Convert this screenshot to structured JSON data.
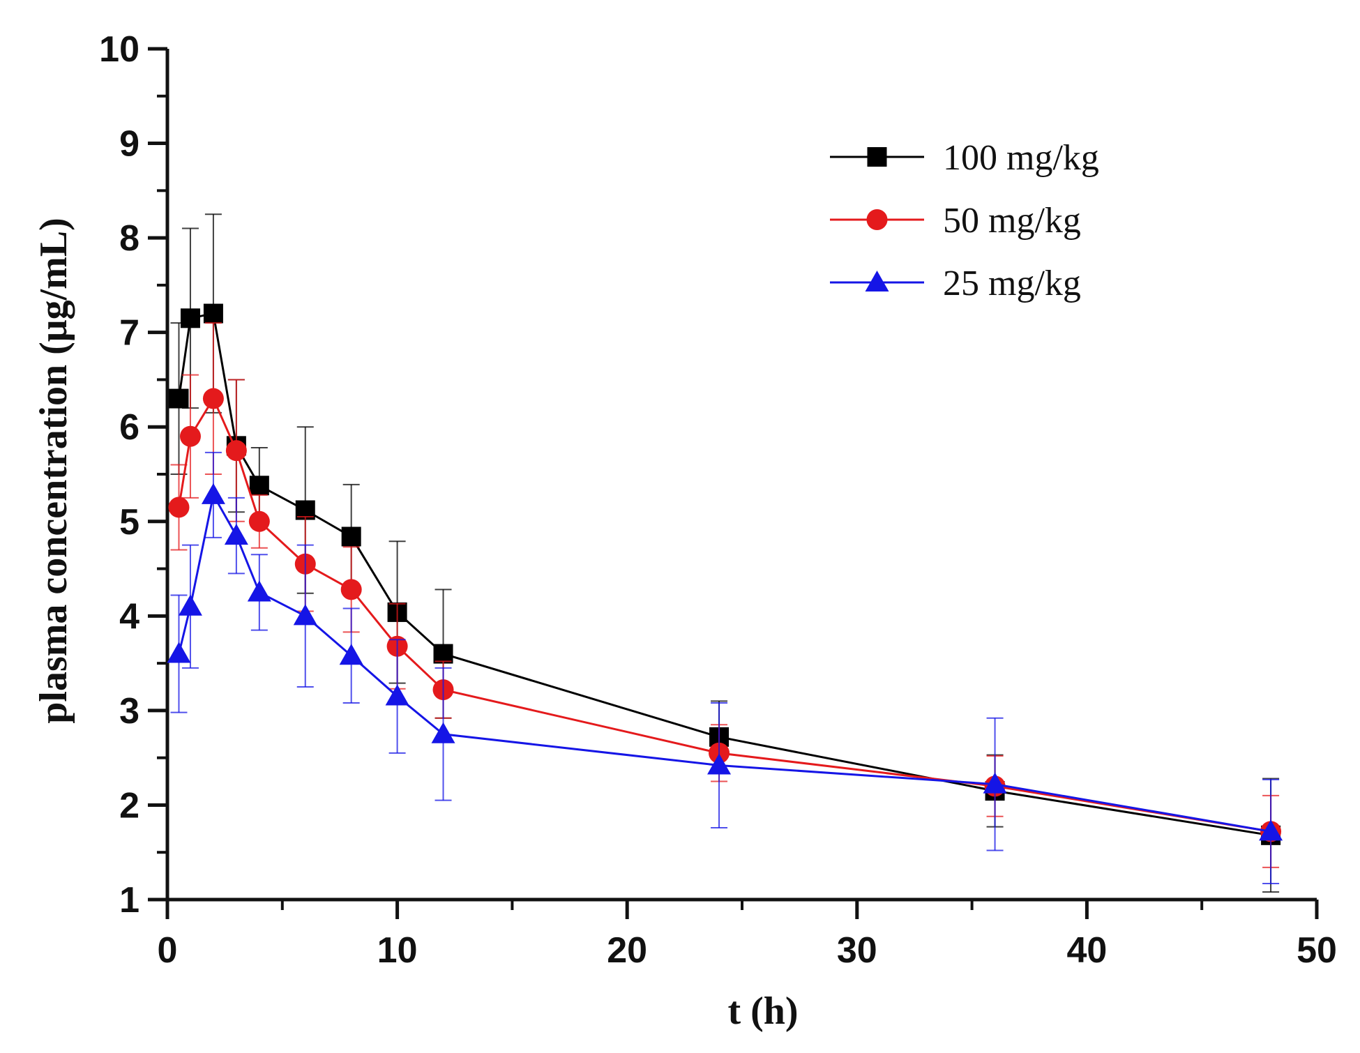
{
  "chart_data": {
    "type": "line",
    "title": "",
    "xlabel": "t (h)",
    "ylabel": "plasma concentration (μg/mL)",
    "xlim": [
      0,
      50
    ],
    "ylim": [
      1,
      10
    ],
    "xticks": [
      0,
      10,
      20,
      30,
      40,
      50
    ],
    "yticks": [
      1,
      2,
      3,
      4,
      5,
      6,
      7,
      8,
      9,
      10
    ],
    "x": [
      0.5,
      1,
      2,
      3,
      4,
      6,
      8,
      10,
      12,
      24,
      36,
      48
    ],
    "legend_position": "top-right",
    "grid": false,
    "series": [
      {
        "name": "100 mg/kg",
        "color": "#000000",
        "marker": "square",
        "values": [
          6.3,
          7.15,
          7.2,
          5.8,
          5.38,
          5.12,
          4.84,
          4.04,
          3.6,
          2.72,
          2.15,
          1.68
        ],
        "errors": [
          0.8,
          0.95,
          1.05,
          0.7,
          0.4,
          0.88,
          0.55,
          0.75,
          0.68,
          0.38,
          0.38,
          0.6
        ]
      },
      {
        "name": "50 mg/kg",
        "color": "#e41a1c",
        "marker": "circle",
        "values": [
          5.15,
          5.9,
          6.3,
          5.75,
          5.0,
          4.55,
          4.28,
          3.68,
          3.22,
          2.55,
          2.2,
          1.72
        ],
        "errors": [
          0.45,
          0.65,
          0.8,
          0.75,
          0.28,
          0.5,
          0.45,
          0.45,
          0.3,
          0.3,
          0.32,
          0.38
        ]
      },
      {
        "name": "25 mg/kg",
        "color": "#1515e6",
        "marker": "triangle",
        "values": [
          3.6,
          4.1,
          5.28,
          4.85,
          4.25,
          4.0,
          3.58,
          3.15,
          2.75,
          2.42,
          2.22,
          1.72
        ],
        "errors": [
          0.62,
          0.65,
          0.45,
          0.4,
          0.4,
          0.75,
          0.5,
          0.6,
          0.7,
          0.66,
          0.7,
          0.55
        ]
      }
    ]
  }
}
